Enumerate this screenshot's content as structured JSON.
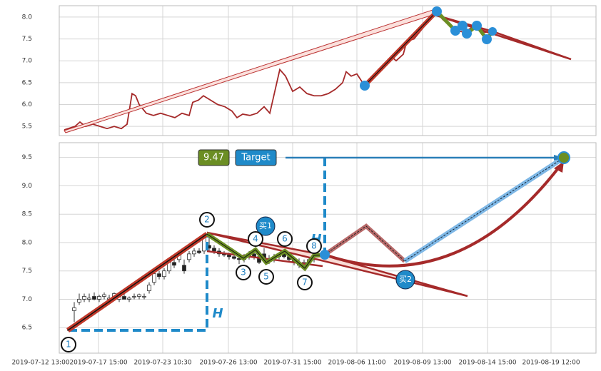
{
  "chart_data": [
    {
      "type": "line",
      "x": [
        7,
        22,
        29,
        37,
        47,
        57,
        67,
        77,
        87,
        95,
        102,
        107,
        112,
        122,
        132,
        142,
        152,
        162,
        172,
        182,
        187,
        195,
        202,
        212,
        222,
        232,
        242,
        249,
        257,
        267,
        277,
        287,
        295,
        302,
        309,
        317,
        327,
        337,
        347,
        357,
        367,
        377,
        387,
        397,
        402,
        409,
        417,
        427,
        437,
        447,
        457,
        465,
        472,
        482,
        487,
        497,
        507,
        517,
        522,
        529,
        537,
        547,
        557,
        567,
        577,
        587,
        597,
        607,
        612
      ],
      "values": [
        5.42,
        5.5,
        5.6,
        5.5,
        5.55,
        5.5,
        5.45,
        5.5,
        5.45,
        5.55,
        6.25,
        6.2,
        6.0,
        5.8,
        5.75,
        5.8,
        5.75,
        5.7,
        5.8,
        5.75,
        6.05,
        6.1,
        6.2,
        6.1,
        6.0,
        5.95,
        5.85,
        5.7,
        5.78,
        5.75,
        5.8,
        5.95,
        5.8,
        6.3,
        6.8,
        6.65,
        6.3,
        6.4,
        6.25,
        6.2,
        6.2,
        6.25,
        6.35,
        6.5,
        6.75,
        6.65,
        6.7,
        6.45,
        6.6,
        6.8,
        6.95,
        7.1,
        7.0,
        7.15,
        7.45,
        7.5,
        7.7,
        7.9,
        8.0,
        8.1,
        7.95,
        7.8,
        7.7,
        7.65,
        7.75,
        7.7,
        7.65,
        7.7,
        7.68
      ],
      "color": "#a52a2a",
      "xlim": [
        0,
        752
      ],
      "xticks": [
        -26,
        55,
        145,
        237,
        327,
        417,
        509,
        600,
        689
      ],
      "ylim": [
        5.29,
        8.26
      ],
      "yticks": [
        5.5,
        {
          "value": 6,
          "label": "6.0"
        },
        6.5,
        {
          "value": 7,
          "label": "7.0"
        },
        7.5,
        {
          "value": 8,
          "label": "8.0"
        }
      ],
      "grid": true
    },
    {
      "type": "candlestick",
      "x": [
        14,
        21,
        28,
        35,
        42,
        49,
        56,
        63,
        70,
        77,
        84,
        91,
        98,
        105,
        112,
        119,
        126,
        133,
        140,
        147,
        154,
        161,
        168,
        175,
        182,
        189,
        196,
        203,
        210,
        217,
        224,
        231,
        238,
        245,
        252,
        259,
        266,
        273,
        280,
        287,
        294,
        301,
        308,
        315,
        322,
        329,
        336,
        343,
        350,
        357,
        364
      ],
      "open": [
        6.45,
        6.8,
        6.95,
        7.0,
        7.0,
        7.05,
        7.0,
        7.05,
        7.0,
        7.05,
        7.0,
        7.05,
        7.0,
        7.05,
        7.05,
        7.05,
        7.15,
        7.3,
        7.45,
        7.4,
        7.5,
        7.65,
        7.7,
        7.6,
        7.7,
        7.8,
        7.85,
        7.85,
        7.95,
        7.9,
        7.85,
        7.8,
        7.78,
        7.75,
        7.72,
        7.7,
        7.75,
        7.8,
        7.75,
        7.8,
        7.7,
        7.7,
        7.75,
        7.8,
        7.75,
        7.7,
        7.65,
        7.6,
        7.65,
        7.7,
        7.75
      ],
      "high": [
        6.5,
        6.95,
        7.1,
        7.1,
        7.1,
        7.12,
        7.08,
        7.12,
        7.08,
        7.12,
        7.1,
        7.1,
        7.05,
        7.1,
        7.1,
        7.1,
        7.3,
        7.5,
        7.5,
        7.55,
        7.7,
        7.75,
        7.85,
        7.7,
        7.85,
        7.9,
        7.9,
        8.15,
        8.1,
        7.95,
        7.9,
        7.85,
        7.82,
        7.8,
        7.78,
        7.8,
        7.85,
        7.85,
        7.8,
        7.9,
        7.78,
        7.8,
        7.82,
        7.85,
        7.8,
        7.75,
        7.72,
        7.7,
        7.75,
        7.8,
        7.8
      ],
      "low": [
        6.42,
        6.6,
        6.9,
        6.95,
        6.95,
        6.98,
        6.95,
        7.0,
        6.95,
        7.0,
        6.95,
        7.0,
        6.95,
        7.0,
        7.0,
        7.0,
        7.1,
        7.25,
        7.35,
        7.35,
        7.45,
        7.55,
        7.65,
        7.45,
        7.65,
        7.75,
        7.8,
        7.8,
        7.85,
        7.8,
        7.75,
        7.75,
        7.7,
        7.7,
        7.62,
        7.65,
        7.7,
        7.7,
        7.62,
        7.65,
        7.62,
        7.65,
        7.7,
        7.72,
        7.65,
        7.6,
        7.55,
        7.52,
        7.6,
        7.65,
        7.7
      ],
      "close": [
        6.48,
        6.85,
        7.0,
        7.05,
        7.02,
        7.0,
        7.05,
        7.08,
        7.02,
        7.1,
        7.05,
        7.0,
        7.02,
        7.05,
        7.08,
        7.05,
        7.25,
        7.45,
        7.4,
        7.5,
        7.65,
        7.6,
        7.8,
        7.5,
        7.8,
        7.85,
        7.82,
        8.1,
        7.9,
        7.85,
        7.8,
        7.78,
        7.75,
        7.72,
        7.7,
        7.75,
        7.8,
        7.75,
        7.65,
        7.7,
        7.68,
        7.75,
        7.8,
        7.75,
        7.7,
        7.65,
        7.6,
        7.65,
        7.7,
        7.75,
        7.78
      ],
      "up_color": "#ffffff",
      "down_color": "#222222",
      "xlim": [
        0,
        752
      ],
      "xticks": [
        {
          "value": -26,
          "label": "2019-07-12 13:00"
        },
        {
          "value": 55,
          "label": "2019-07-17 15:00"
        },
        {
          "value": 145,
          "label": "2019-07-23 10:30"
        },
        {
          "value": 237,
          "label": "2019-07-26 13:00"
        },
        {
          "value": 327,
          "label": "2019-07-31 15:00"
        },
        {
          "value": 417,
          "label": "2019-08-06 11:00"
        },
        {
          "value": 509,
          "label": "2019-08-09 13:00"
        },
        {
          "value": 600,
          "label": "2019-08-14 15:00"
        },
        {
          "value": 689,
          "label": "2019-08-19 12:00"
        }
      ],
      "ylim": [
        6.05,
        9.76
      ],
      "yticks": [
        6.5,
        {
          "value": 7,
          "label": "7.0"
        },
        7.5,
        {
          "value": 8,
          "label": "8.0"
        },
        8.5,
        {
          "value": 9,
          "label": "9.0"
        },
        9.5
      ],
      "grid": true,
      "annotations": {
        "price": "9.47",
        "target": "Target",
        "buy1": "买1",
        "buy2": "买2",
        "h_labels": [
          "H",
          "H"
        ],
        "points": [
          "1",
          "2",
          "3",
          "4",
          "5",
          "6",
          "7",
          "8"
        ]
      }
    }
  ]
}
